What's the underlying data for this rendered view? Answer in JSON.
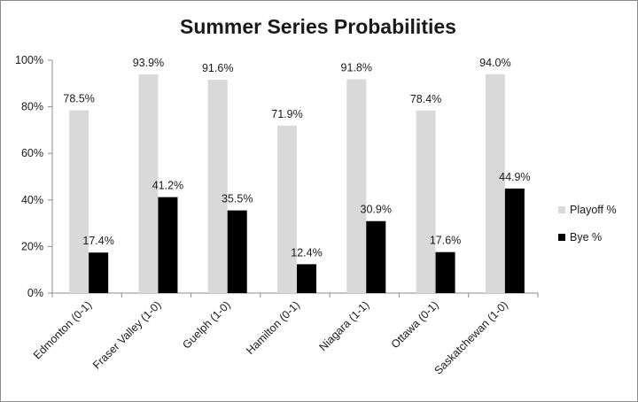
{
  "chart_data": {
    "type": "bar",
    "title": "Summer Series Probabilities",
    "categories": [
      "Edmonton (0-1)",
      "Fraser Valley (1-0)",
      "Guelph (1-0)",
      "Hamilton (0-1)",
      "Niagara (1-1)",
      "Ottawa (0-1)",
      "Saskatchewan (1-0)"
    ],
    "series": [
      {
        "name": "Playoff %",
        "color": "#d9d9d9",
        "values": [
          78.5,
          93.9,
          91.6,
          71.9,
          91.8,
          78.4,
          94.0
        ],
        "labels": [
          "78.5%",
          "93.9%",
          "91.6%",
          "71.9%",
          "91.8%",
          "78.4%",
          "94.0%"
        ]
      },
      {
        "name": "Bye %",
        "color": "#000000",
        "values": [
          17.4,
          41.2,
          35.5,
          12.4,
          30.9,
          17.6,
          44.9
        ],
        "labels": [
          "17.4%",
          "41.2%",
          "35.5%",
          "12.4%",
          "30.9%",
          "17.6%",
          "44.9%"
        ]
      }
    ],
    "ylim": [
      0,
      100
    ],
    "yticks": [
      {
        "value": 0,
        "label": "0%"
      },
      {
        "value": 20,
        "label": "20%"
      },
      {
        "value": 40,
        "label": "40%"
      },
      {
        "value": 60,
        "label": "60%"
      },
      {
        "value": 80,
        "label": "80%"
      },
      {
        "value": 100,
        "label": "100%"
      }
    ],
    "grid": false,
    "legend": "right"
  }
}
